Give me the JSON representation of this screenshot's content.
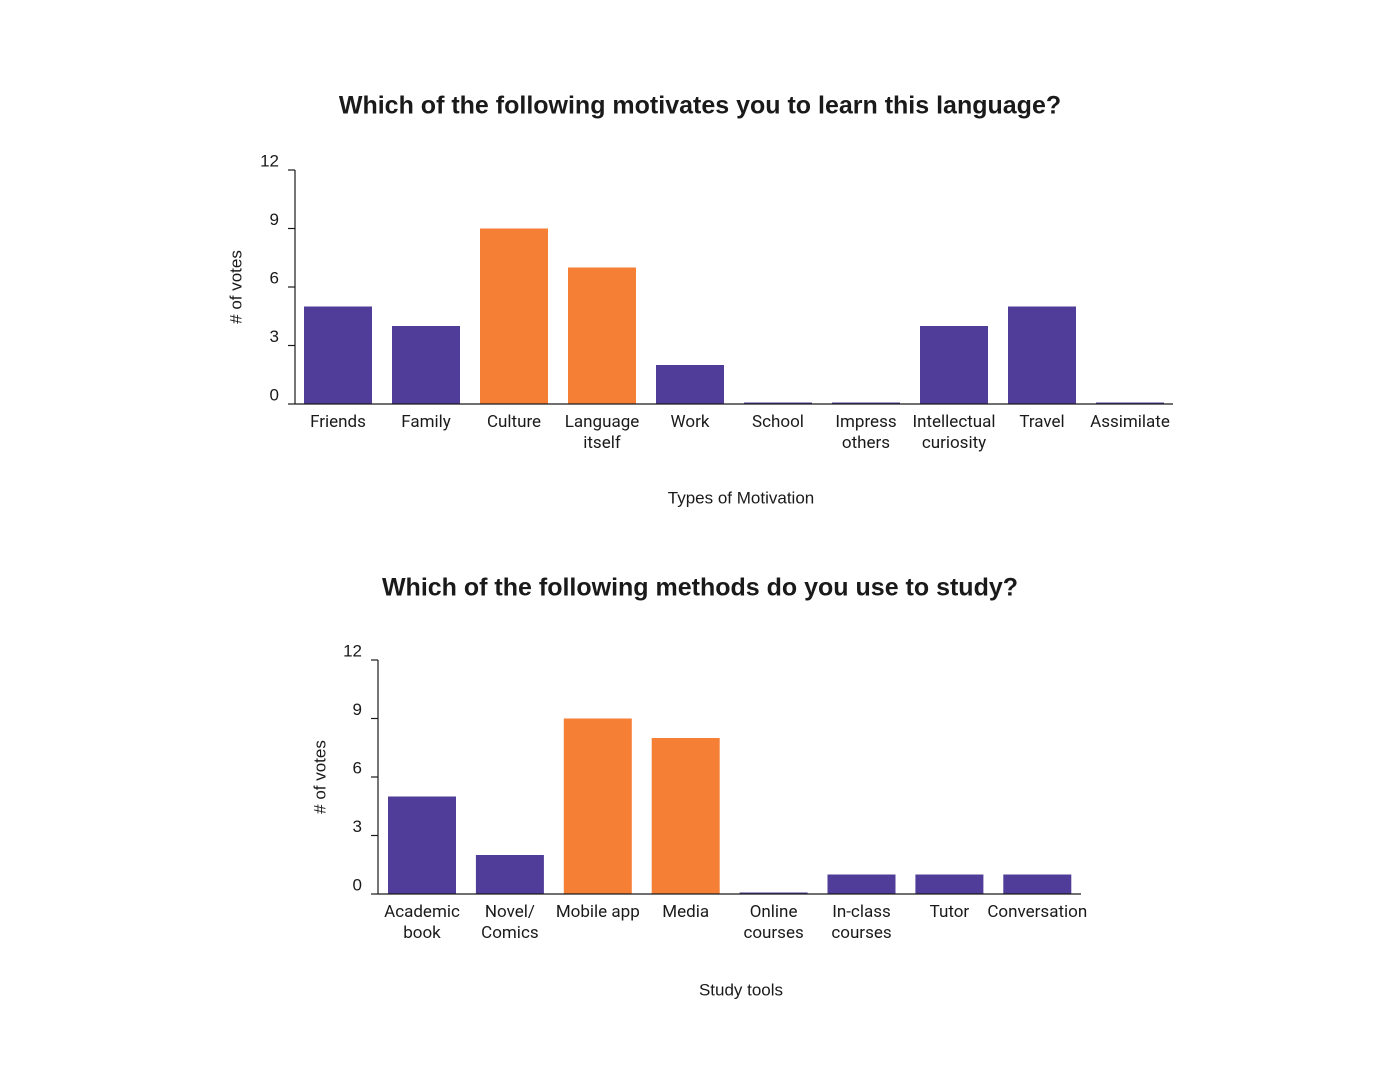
{
  "chart_data": [
    {
      "type": "bar",
      "title": "Which of the following motivates you to learn this language?",
      "x_label": "Types of Motivation",
      "y_label": "# of votes",
      "categories": [
        "Friends",
        "Family",
        "Culture",
        "Language itself",
        "Work",
        "School",
        "Impress others",
        "Intellectual curiosity",
        "Travel",
        "Assimilate"
      ],
      "values": [
        5,
        4,
        9,
        7,
        2,
        0,
        0,
        4,
        5,
        0
      ],
      "colors": [
        "#4f3d99",
        "#4f3d99",
        "#f67f36",
        "#f67f36",
        "#4f3d99",
        "#4f3d99",
        "#4f3d99",
        "#4f3d99",
        "#4f3d99",
        "#4f3d99"
      ],
      "ylim": [
        0,
        12
      ],
      "yticks": [
        0,
        3,
        6,
        9,
        12
      ]
    },
    {
      "type": "bar",
      "title": "Which of the following methods do you use to study?",
      "x_label": "Study tools",
      "y_label": "# of votes",
      "categories": [
        "Academic book",
        "Novel/ Comics",
        "Mobile app",
        "Media",
        "Online courses",
        "In-class courses",
        "Tutor",
        "Conversation"
      ],
      "values": [
        5,
        2,
        9,
        8,
        0,
        1,
        1,
        1
      ],
      "colors": [
        "#4f3d99",
        "#4f3d99",
        "#f67f36",
        "#f67f36",
        "#4f3d99",
        "#4f3d99",
        "#4f3d99",
        "#4f3d99"
      ],
      "ylim": [
        0,
        12
      ],
      "yticks": [
        0,
        3,
        6,
        9,
        12
      ]
    }
  ]
}
